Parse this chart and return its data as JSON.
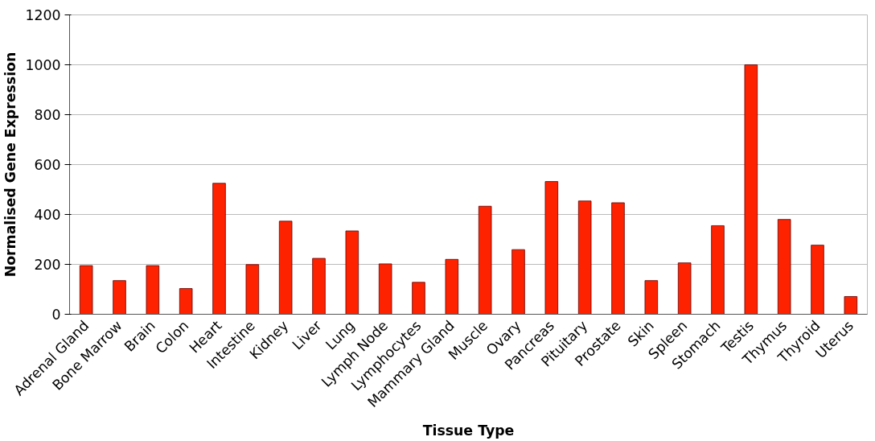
{
  "chart_data": {
    "type": "bar",
    "xlabel": "Tissue Type",
    "ylabel": "Normalised Gene Expression",
    "categories": [
      "Adrenal Gland",
      "Bone Marrow",
      "Brain",
      "Colon",
      "Heart",
      "Intestine",
      "Kidney",
      "Liver",
      "Lung",
      "Lymph Node",
      "Lymphocytes",
      "Mammary Gland",
      "Muscle",
      "Ovary",
      "Pancreas",
      "Pituitary",
      "Prostate",
      "Skin",
      "Spleen",
      "Stomach",
      "Testis",
      "Thymus",
      "Thyroid",
      "Uterus"
    ],
    "values": [
      195,
      135,
      195,
      103,
      525,
      199,
      373,
      224,
      334,
      202,
      128,
      220,
      433,
      259,
      532,
      454,
      447,
      135,
      206,
      355,
      1000,
      380,
      277,
      71
    ],
    "color": "#ff2200",
    "ylim": [
      0,
      1200
    ],
    "yticks": [
      0,
      200,
      400,
      600,
      800,
      1000,
      1200
    ],
    "grid": "y"
  }
}
